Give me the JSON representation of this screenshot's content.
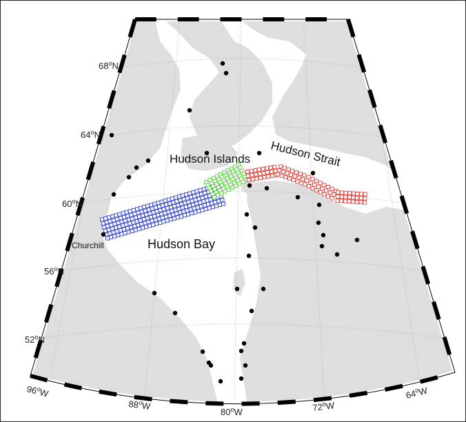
{
  "map": {
    "colors": {
      "ocean": "#ffffff",
      "land": "#dedede",
      "frame_dark": "#000000",
      "frame_light": "#ffffff",
      "station": "#000000",
      "route_west": "#2b3fd1",
      "route_central": "#55d13a",
      "route_east": "#e0463e"
    },
    "labels": {
      "hudson_islands": "Hudson Islands",
      "hudson_strait": "Hudson Strait",
      "hudson_bay": "Hudson Bay",
      "churchill": "Churchill"
    },
    "lat_ticks": [
      {
        "deg": "68",
        "unit": "o",
        "hemi": "N"
      },
      {
        "deg": "64",
        "unit": "o",
        "hemi": "N"
      },
      {
        "deg": "60",
        "unit": "o",
        "hemi": "N"
      },
      {
        "deg": "56",
        "unit": "o",
        "hemi": "N"
      },
      {
        "deg": "52",
        "unit": "o",
        "hemi": "N"
      }
    ],
    "lon_ticks": [
      {
        "deg": "96",
        "unit": "o",
        "hemi": "W"
      },
      {
        "deg": "88",
        "unit": "o",
        "hemi": "W"
      },
      {
        "deg": "80",
        "unit": "o",
        "hemi": "W"
      },
      {
        "deg": "72",
        "unit": "o",
        "hemi": "W"
      },
      {
        "deg": "64",
        "unit": "o",
        "hemi": "W"
      }
    ],
    "stations_count_note": "",
    "route_marker": "square"
  }
}
